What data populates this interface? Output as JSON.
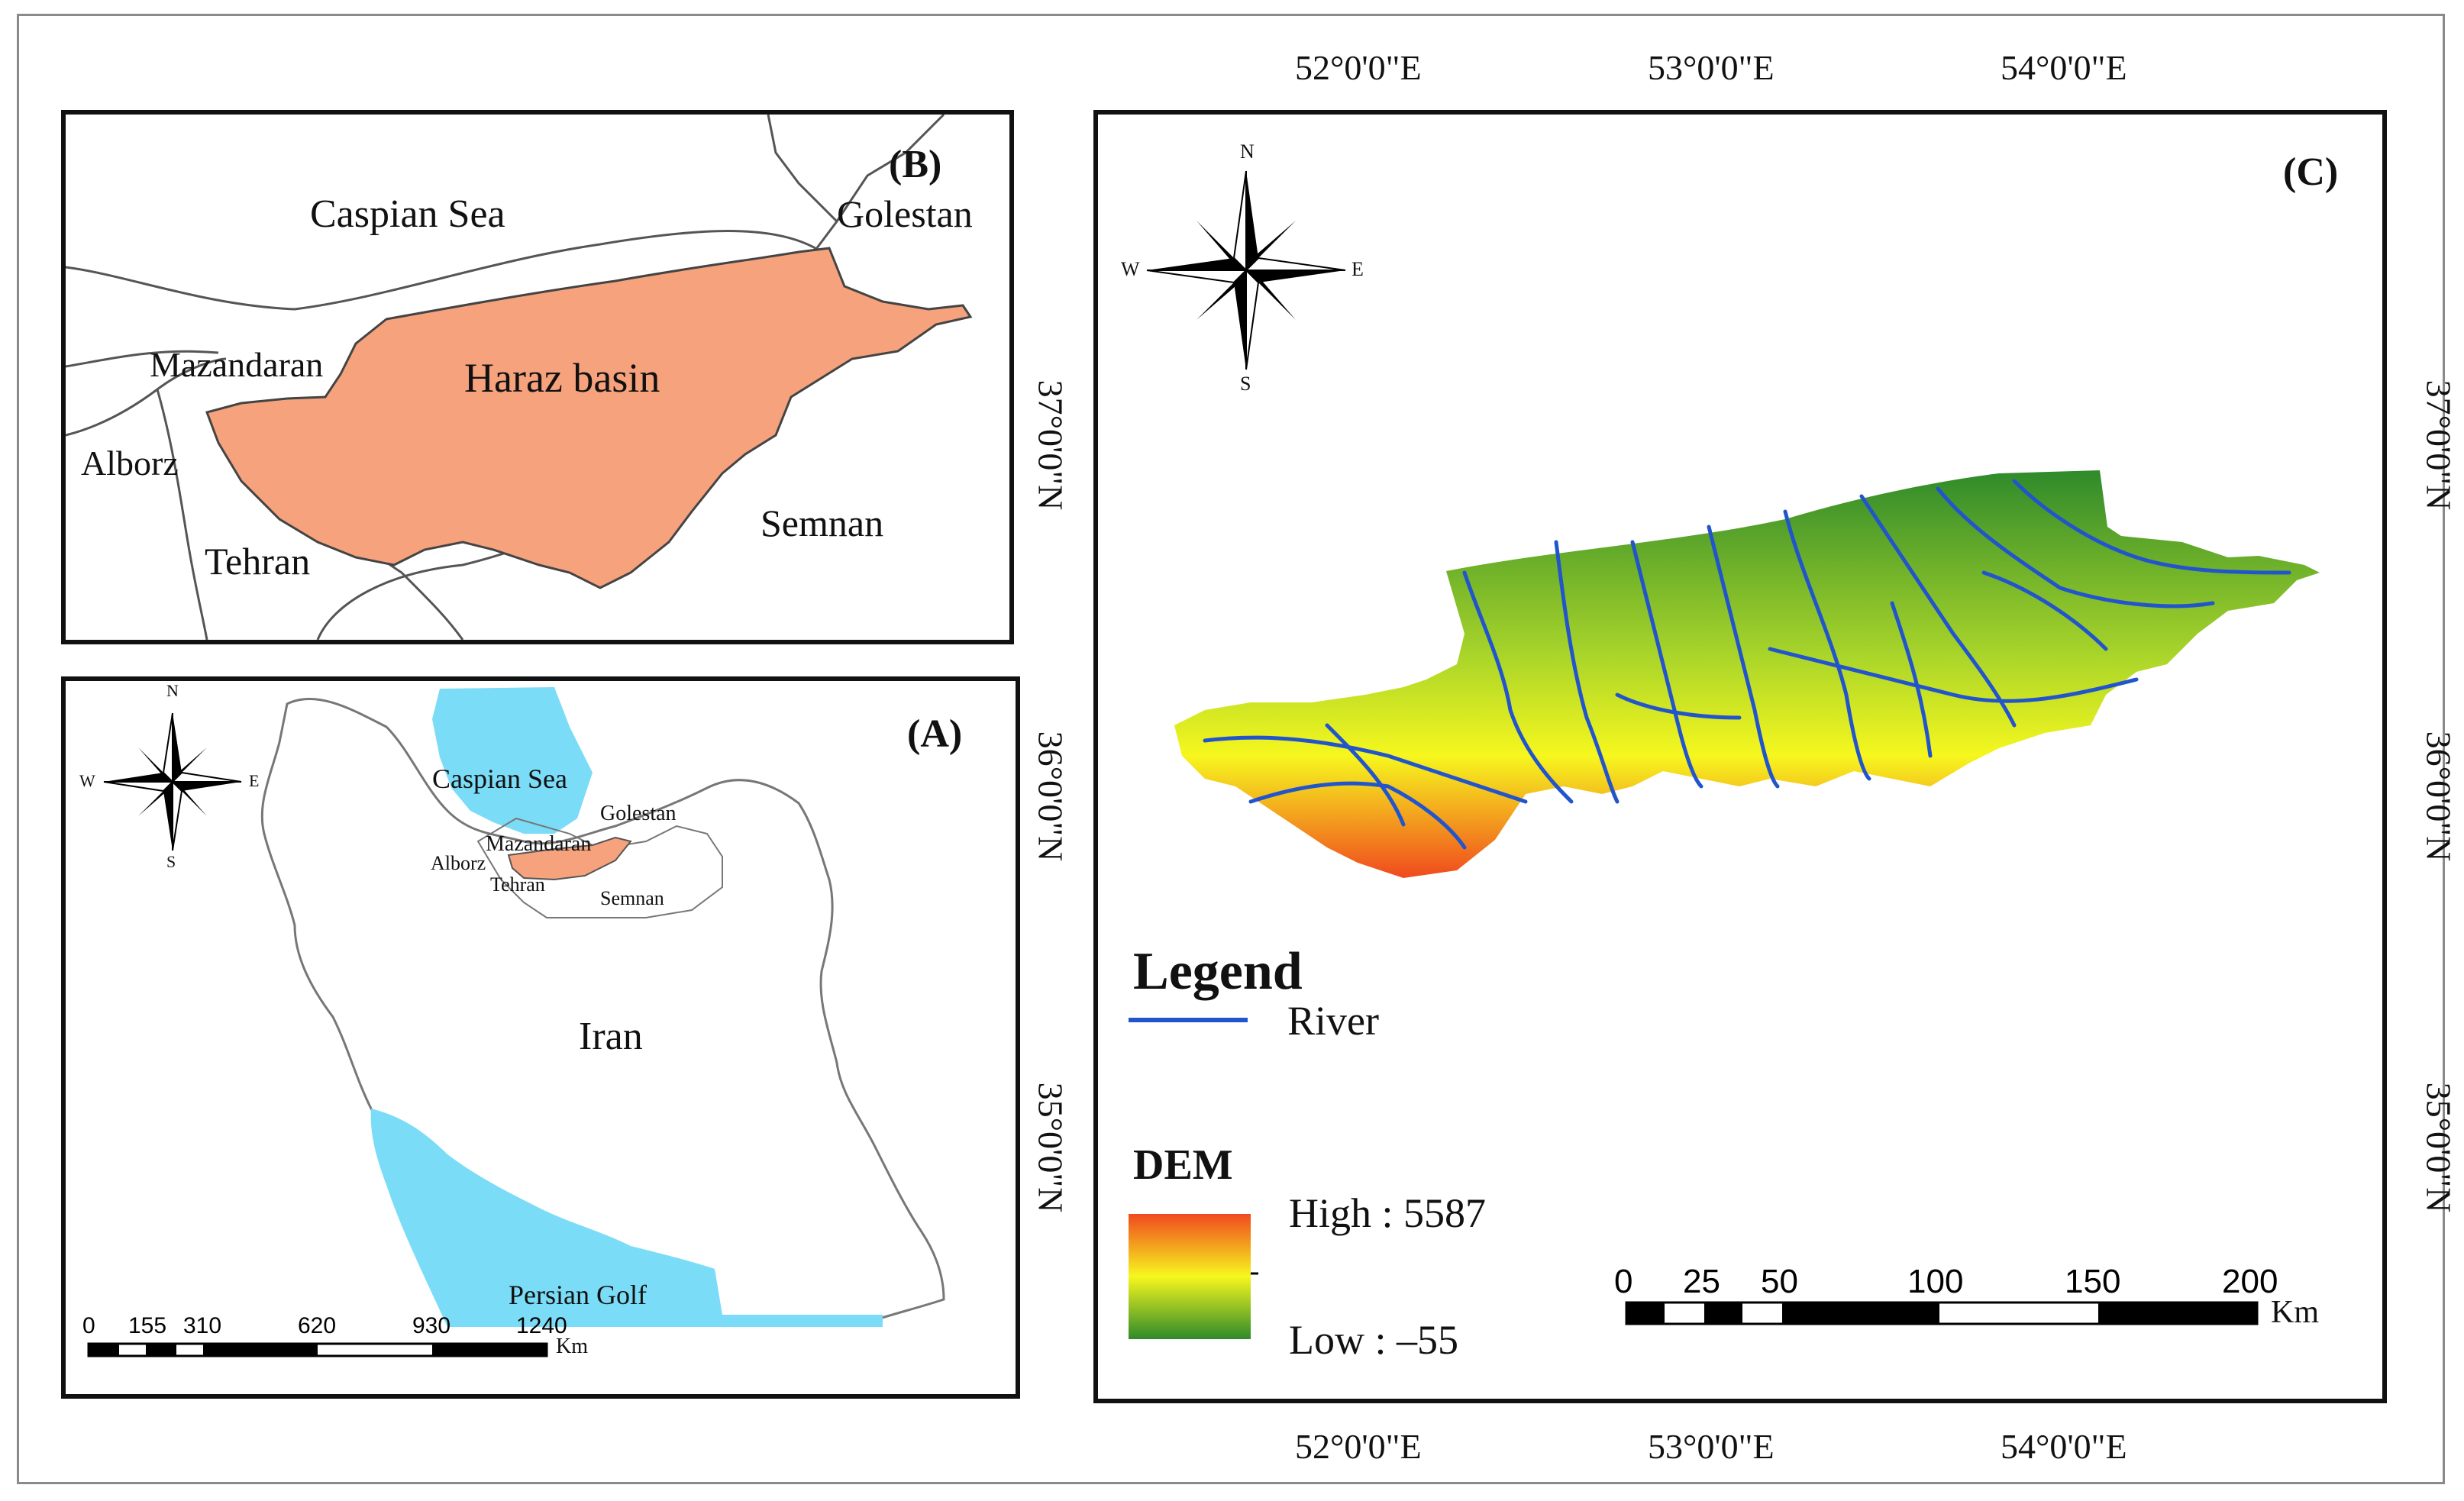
{
  "panels": {
    "b": {
      "id_label": "(B)",
      "labels": {
        "caspian": "Caspian Sea",
        "golestan": "Golestan",
        "mazandaran": "Mazandaran",
        "haraz": "Haraz basin",
        "alborz": "Alborz",
        "tehran": "Tehran",
        "semnan": "Semnan"
      },
      "colors": {
        "basin": "#f6a27d"
      }
    },
    "a": {
      "id_label": "(A)",
      "labels": {
        "caspian": "Caspian Sea",
        "golestan": "Golestan",
        "mazandaran": "Mazandaran",
        "alborz": "Alborz",
        "tehran": "Tehran",
        "semnan": "Semnan",
        "iran": "Iran",
        "persian_golf": "Persian Golf"
      },
      "compass": {
        "n": "N",
        "s": "S",
        "e": "E",
        "w": "W"
      },
      "scale": {
        "ticks": [
          "0",
          "155",
          "310",
          "620",
          "930",
          "1240"
        ],
        "unit": "Km"
      },
      "colors": {
        "water": "#7bdcf7",
        "basin": "#f6a27d"
      }
    },
    "c": {
      "id_label": "(C)",
      "compass": {
        "n": "N",
        "s": "S",
        "e": "E",
        "w": "W"
      },
      "legend": {
        "title": "Legend",
        "river_label": "River",
        "dem_title": "DEM",
        "high_label": "High : 5587",
        "low_label": "Low : –55"
      },
      "scale": {
        "ticks": [
          "0",
          "25",
          "50",
          "100",
          "150",
          "200"
        ],
        "unit": "Km"
      },
      "colors": {
        "river": "#2255cc",
        "dem_high": "#f04a1e",
        "dem_mid": "#f6f71e",
        "dem_low": "#2f8a2b"
      }
    }
  },
  "graticule": {
    "top": [
      "52°0'0\"E",
      "53°0'0\"E",
      "54°0'0\"E"
    ],
    "bottom": [
      "52°0'0\"E",
      "53°0'0\"E",
      "54°0'0\"E"
    ],
    "left": [
      "37°0'0\"N",
      "36°0'0\"N",
      "35°0'0\"N"
    ],
    "right": [
      "37°0'0\"N",
      "36°0'0\"N",
      "35°0'0\"N"
    ]
  }
}
